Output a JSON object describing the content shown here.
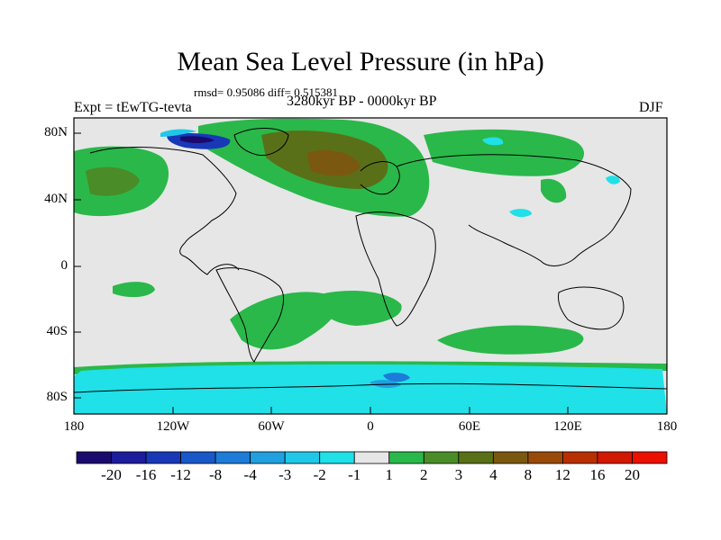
{
  "title": "Mean Sea Level Pressure (in hPa)",
  "stats": "rmsd= 0.95086 diff= 0.515381",
  "expt": "Expt = tEwTG-tevta",
  "period": "3280kyr BP - 0000kyr BP",
  "season": "DJF",
  "lat_labels": [
    "80N",
    "40N",
    "0",
    "40S",
    "80S"
  ],
  "lon_labels": [
    "180",
    "120W",
    "60W",
    "0",
    "60E",
    "120E",
    "180"
  ],
  "colorbar": {
    "labels": [
      "-20",
      "-16",
      "-12",
      "-8",
      "-4",
      "-3",
      "-2",
      "-1",
      "1",
      "2",
      "3",
      "4",
      "8",
      "12",
      "16",
      "20"
    ],
    "colors": [
      "#1a0a6e",
      "#1c1c9c",
      "#1838b8",
      "#1858c8",
      "#1c7cd8",
      "#20a0e0",
      "#20c8e8",
      "#20e0e8",
      "#e6e6e6",
      "#2ab84a",
      "#4a8c28",
      "#5a7018",
      "#7a5810",
      "#9a4a08",
      "#b83000",
      "#d21800",
      "#ec1000"
    ]
  }
}
